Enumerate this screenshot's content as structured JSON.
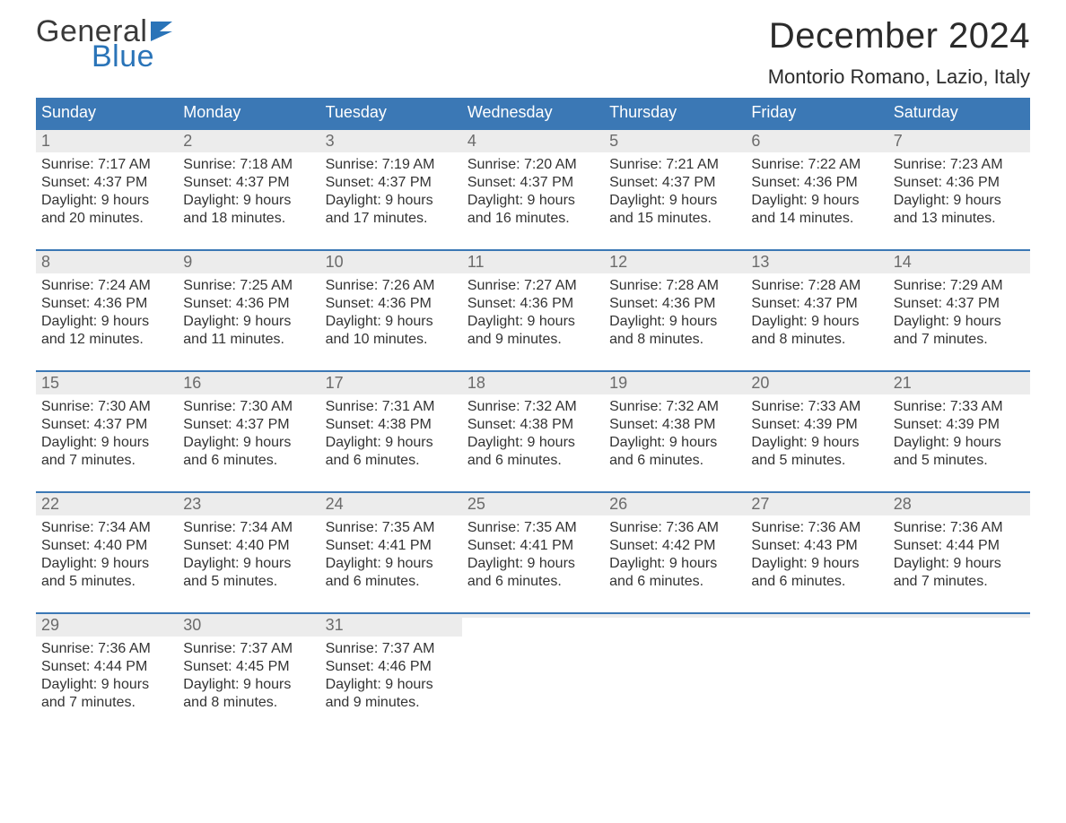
{
  "brand": {
    "word1": "General",
    "word2": "Blue",
    "word1_color": "#3a3a3a",
    "word2_color": "#2a74b8",
    "flag_color": "#2a74b8"
  },
  "title": {
    "month": "December 2024",
    "location": "Montorio Romano, Lazio, Italy",
    "title_fontsize": 40,
    "location_fontsize": 22,
    "text_color": "#2b2b2b"
  },
  "colors": {
    "header_bg": "#3b78b5",
    "header_text": "#ffffff",
    "week_top_border": "#3b78b5",
    "daynum_bg": "#ececec",
    "daynum_text": "#6b6b6b",
    "body_text": "#333333",
    "page_bg": "#ffffff"
  },
  "days_of_week": [
    "Sunday",
    "Monday",
    "Tuesday",
    "Wednesday",
    "Thursday",
    "Friday",
    "Saturday"
  ],
  "weeks": [
    [
      {
        "n": "1",
        "sunrise": "Sunrise: 7:17 AM",
        "sunset": "Sunset: 4:37 PM",
        "dl1": "Daylight: 9 hours",
        "dl2": "and 20 minutes."
      },
      {
        "n": "2",
        "sunrise": "Sunrise: 7:18 AM",
        "sunset": "Sunset: 4:37 PM",
        "dl1": "Daylight: 9 hours",
        "dl2": "and 18 minutes."
      },
      {
        "n": "3",
        "sunrise": "Sunrise: 7:19 AM",
        "sunset": "Sunset: 4:37 PM",
        "dl1": "Daylight: 9 hours",
        "dl2": "and 17 minutes."
      },
      {
        "n": "4",
        "sunrise": "Sunrise: 7:20 AM",
        "sunset": "Sunset: 4:37 PM",
        "dl1": "Daylight: 9 hours",
        "dl2": "and 16 minutes."
      },
      {
        "n": "5",
        "sunrise": "Sunrise: 7:21 AM",
        "sunset": "Sunset: 4:37 PM",
        "dl1": "Daylight: 9 hours",
        "dl2": "and 15 minutes."
      },
      {
        "n": "6",
        "sunrise": "Sunrise: 7:22 AM",
        "sunset": "Sunset: 4:36 PM",
        "dl1": "Daylight: 9 hours",
        "dl2": "and 14 minutes."
      },
      {
        "n": "7",
        "sunrise": "Sunrise: 7:23 AM",
        "sunset": "Sunset: 4:36 PM",
        "dl1": "Daylight: 9 hours",
        "dl2": "and 13 minutes."
      }
    ],
    [
      {
        "n": "8",
        "sunrise": "Sunrise: 7:24 AM",
        "sunset": "Sunset: 4:36 PM",
        "dl1": "Daylight: 9 hours",
        "dl2": "and 12 minutes."
      },
      {
        "n": "9",
        "sunrise": "Sunrise: 7:25 AM",
        "sunset": "Sunset: 4:36 PM",
        "dl1": "Daylight: 9 hours",
        "dl2": "and 11 minutes."
      },
      {
        "n": "10",
        "sunrise": "Sunrise: 7:26 AM",
        "sunset": "Sunset: 4:36 PM",
        "dl1": "Daylight: 9 hours",
        "dl2": "and 10 minutes."
      },
      {
        "n": "11",
        "sunrise": "Sunrise: 7:27 AM",
        "sunset": "Sunset: 4:36 PM",
        "dl1": "Daylight: 9 hours",
        "dl2": "and 9 minutes."
      },
      {
        "n": "12",
        "sunrise": "Sunrise: 7:28 AM",
        "sunset": "Sunset: 4:36 PM",
        "dl1": "Daylight: 9 hours",
        "dl2": "and 8 minutes."
      },
      {
        "n": "13",
        "sunrise": "Sunrise: 7:28 AM",
        "sunset": "Sunset: 4:37 PM",
        "dl1": "Daylight: 9 hours",
        "dl2": "and 8 minutes."
      },
      {
        "n": "14",
        "sunrise": "Sunrise: 7:29 AM",
        "sunset": "Sunset: 4:37 PM",
        "dl1": "Daylight: 9 hours",
        "dl2": "and 7 minutes."
      }
    ],
    [
      {
        "n": "15",
        "sunrise": "Sunrise: 7:30 AM",
        "sunset": "Sunset: 4:37 PM",
        "dl1": "Daylight: 9 hours",
        "dl2": "and 7 minutes."
      },
      {
        "n": "16",
        "sunrise": "Sunrise: 7:30 AM",
        "sunset": "Sunset: 4:37 PM",
        "dl1": "Daylight: 9 hours",
        "dl2": "and 6 minutes."
      },
      {
        "n": "17",
        "sunrise": "Sunrise: 7:31 AM",
        "sunset": "Sunset: 4:38 PM",
        "dl1": "Daylight: 9 hours",
        "dl2": "and 6 minutes."
      },
      {
        "n": "18",
        "sunrise": "Sunrise: 7:32 AM",
        "sunset": "Sunset: 4:38 PM",
        "dl1": "Daylight: 9 hours",
        "dl2": "and 6 minutes."
      },
      {
        "n": "19",
        "sunrise": "Sunrise: 7:32 AM",
        "sunset": "Sunset: 4:38 PM",
        "dl1": "Daylight: 9 hours",
        "dl2": "and 6 minutes."
      },
      {
        "n": "20",
        "sunrise": "Sunrise: 7:33 AM",
        "sunset": "Sunset: 4:39 PM",
        "dl1": "Daylight: 9 hours",
        "dl2": "and 5 minutes."
      },
      {
        "n": "21",
        "sunrise": "Sunrise: 7:33 AM",
        "sunset": "Sunset: 4:39 PM",
        "dl1": "Daylight: 9 hours",
        "dl2": "and 5 minutes."
      }
    ],
    [
      {
        "n": "22",
        "sunrise": "Sunrise: 7:34 AM",
        "sunset": "Sunset: 4:40 PM",
        "dl1": "Daylight: 9 hours",
        "dl2": "and 5 minutes."
      },
      {
        "n": "23",
        "sunrise": "Sunrise: 7:34 AM",
        "sunset": "Sunset: 4:40 PM",
        "dl1": "Daylight: 9 hours",
        "dl2": "and 5 minutes."
      },
      {
        "n": "24",
        "sunrise": "Sunrise: 7:35 AM",
        "sunset": "Sunset: 4:41 PM",
        "dl1": "Daylight: 9 hours",
        "dl2": "and 6 minutes."
      },
      {
        "n": "25",
        "sunrise": "Sunrise: 7:35 AM",
        "sunset": "Sunset: 4:41 PM",
        "dl1": "Daylight: 9 hours",
        "dl2": "and 6 minutes."
      },
      {
        "n": "26",
        "sunrise": "Sunrise: 7:36 AM",
        "sunset": "Sunset: 4:42 PM",
        "dl1": "Daylight: 9 hours",
        "dl2": "and 6 minutes."
      },
      {
        "n": "27",
        "sunrise": "Sunrise: 7:36 AM",
        "sunset": "Sunset: 4:43 PM",
        "dl1": "Daylight: 9 hours",
        "dl2": "and 6 minutes."
      },
      {
        "n": "28",
        "sunrise": "Sunrise: 7:36 AM",
        "sunset": "Sunset: 4:44 PM",
        "dl1": "Daylight: 9 hours",
        "dl2": "and 7 minutes."
      }
    ],
    [
      {
        "n": "29",
        "sunrise": "Sunrise: 7:36 AM",
        "sunset": "Sunset: 4:44 PM",
        "dl1": "Daylight: 9 hours",
        "dl2": "and 7 minutes."
      },
      {
        "n": "30",
        "sunrise": "Sunrise: 7:37 AM",
        "sunset": "Sunset: 4:45 PM",
        "dl1": "Daylight: 9 hours",
        "dl2": "and 8 minutes."
      },
      {
        "n": "31",
        "sunrise": "Sunrise: 7:37 AM",
        "sunset": "Sunset: 4:46 PM",
        "dl1": "Daylight: 9 hours",
        "dl2": "and 9 minutes."
      },
      {
        "empty": true
      },
      {
        "empty": true
      },
      {
        "empty": true
      },
      {
        "empty": true
      }
    ]
  ]
}
